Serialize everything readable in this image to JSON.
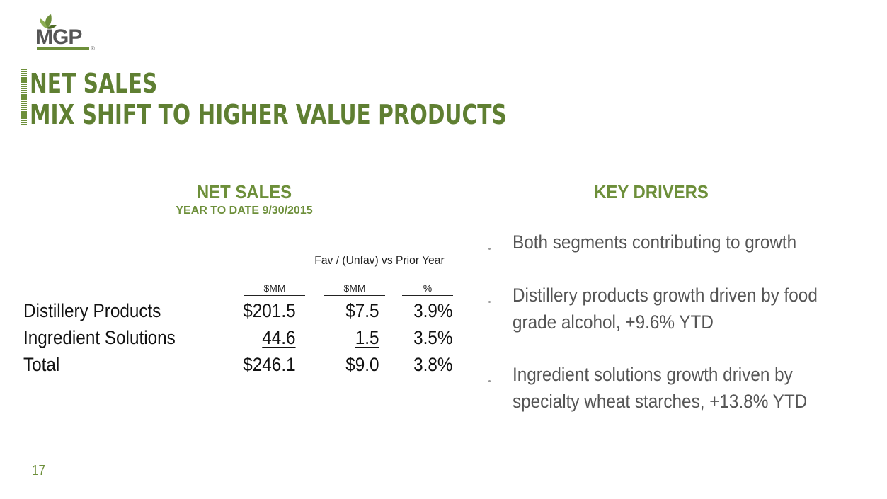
{
  "logo": {
    "text": "MGP",
    "reg": "®"
  },
  "title": {
    "line1": "NET SALES",
    "line2": "MIX SHIFT TO HIGHER VALUE PRODUCTS"
  },
  "net_sales": {
    "heading": "NET SALES",
    "subheading": "YEAR TO DATE 9/30/2015",
    "group_header": "Fav / (Unfav) vs Prior Year",
    "columns": [
      "$MM",
      "$MM",
      "%"
    ],
    "rows": [
      {
        "label": "Distillery Products",
        "values": [
          "$201.5",
          "$7.5",
          "3.9%"
        ]
      },
      {
        "label": "Ingredient Solutions",
        "values": [
          "44.6",
          "1.5",
          "3.5%"
        ]
      },
      {
        "label": "Total",
        "values": [
          "$246.1",
          "$9.0",
          "3.8%"
        ]
      }
    ]
  },
  "key_drivers": {
    "heading": "KEY DRIVERS",
    "bullets": [
      "Both segments contributing to growth",
      "Distillery products growth driven by food grade alcohol, +9.6% YTD",
      "Ingredient solutions growth driven by specialty wheat starches, +13.8% YTD"
    ]
  },
  "page_number": "17",
  "colors": {
    "brand_green": "#6d8f3a",
    "title_green": "#5f7f32",
    "logo_gray": "#555555"
  }
}
